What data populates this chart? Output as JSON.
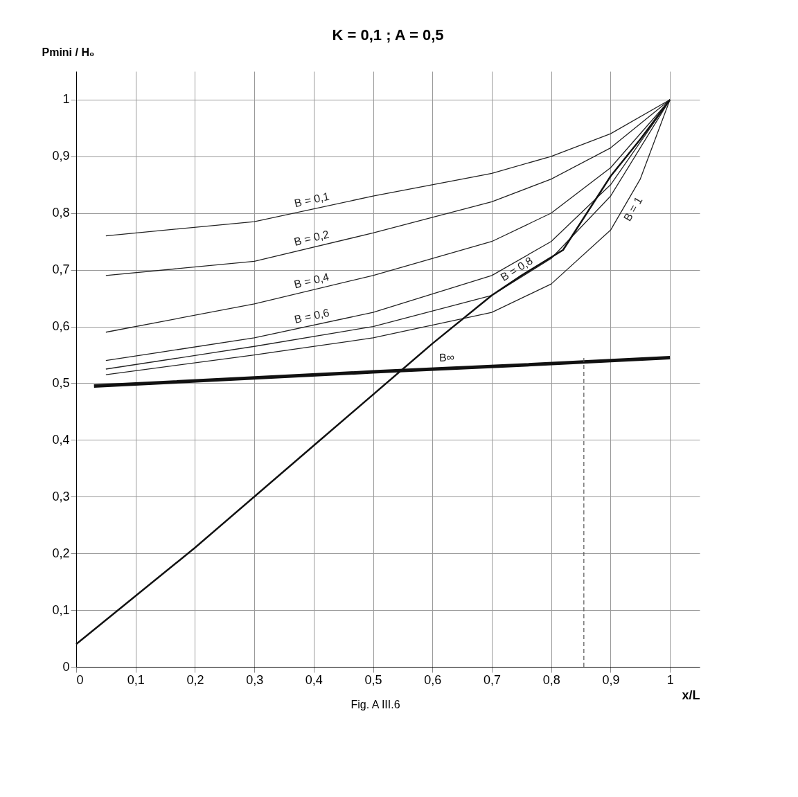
{
  "chart_data": {
    "type": "line",
    "title": "K = 0,1     ;     A = 0,5",
    "xlabel": "x/L",
    "ylabel": "Pmini / H₀",
    "xlim": [
      0,
      1.05
    ],
    "ylim": [
      0,
      1.05
    ],
    "xticks": [
      0,
      {
        "value": 0.1,
        "label": "0,1"
      },
      {
        "value": 0.2,
        "label": "0,2"
      },
      {
        "value": 0.3,
        "label": "0,3"
      },
      {
        "value": 0.4,
        "label": "0,4"
      },
      {
        "value": 0.5,
        "label": "0,5"
      },
      {
        "value": 0.6,
        "label": "0,6"
      },
      {
        "value": 0.7,
        "label": "0,7"
      },
      {
        "value": 0.8,
        "label": "0,8"
      },
      {
        "value": 0.9,
        "label": "0,9"
      },
      1
    ],
    "yticks": [
      0,
      {
        "value": 0.1,
        "label": "0,1"
      },
      {
        "value": 0.2,
        "label": "0,2"
      },
      {
        "value": 0.3,
        "label": "0,3"
      },
      {
        "value": 0.4,
        "label": "0,4"
      },
      {
        "value": 0.5,
        "label": "0,5"
      },
      {
        "value": 0.6,
        "label": "0,6"
      },
      {
        "value": 0.7,
        "label": "0,7"
      },
      {
        "value": 0.8,
        "label": "0,8"
      },
      {
        "value": 0.9,
        "label": "0,9"
      },
      1
    ],
    "grid": true,
    "marker": "none",
    "line_style": "solid",
    "series": [
      {
        "name": "B = 0,1",
        "color": "#222222",
        "x": [
          0.05,
          0.3,
          0.5,
          0.7,
          0.8,
          0.9,
          1
        ],
        "values": [
          0.76,
          0.785,
          0.83,
          0.87,
          0.9,
          0.94,
          1
        ]
      },
      {
        "name": "B = 0,2",
        "color": "#222222",
        "x": [
          0.05,
          0.3,
          0.5,
          0.7,
          0.8,
          0.9,
          1
        ],
        "values": [
          0.69,
          0.715,
          0.765,
          0.82,
          0.86,
          0.915,
          1
        ]
      },
      {
        "name": "B = 0,4",
        "color": "#222222",
        "x": [
          0.05,
          0.3,
          0.5,
          0.7,
          0.8,
          0.9,
          1
        ],
        "values": [
          0.59,
          0.64,
          0.69,
          0.75,
          0.8,
          0.88,
          1
        ]
      },
      {
        "name": "B = 0,6",
        "color": "#222222",
        "x": [
          0.05,
          0.3,
          0.5,
          0.7,
          0.8,
          0.9,
          1
        ],
        "values": [
          0.54,
          0.58,
          0.625,
          0.69,
          0.75,
          0.85,
          1
        ]
      },
      {
        "name": "B = 0,8",
        "color": "#222222",
        "x": [
          0.05,
          0.3,
          0.5,
          0.7,
          0.8,
          0.9,
          1
        ],
        "values": [
          0.525,
          0.565,
          0.6,
          0.655,
          0.72,
          0.83,
          1
        ]
      },
      {
        "name": "B = 1",
        "color": "#222222",
        "x": [
          0.05,
          0.3,
          0.5,
          0.7,
          0.8,
          0.9,
          0.95,
          1
        ],
        "values": [
          0.515,
          0.55,
          0.58,
          0.625,
          0.675,
          0.77,
          0.86,
          1
        ]
      },
      {
        "name": "B∞",
        "color": "#111111",
        "x": [
          0.03,
          0.5,
          0.75,
          1
        ],
        "values": [
          0.495,
          0.52,
          0.532,
          0.545
        ]
      },
      {
        "color": "#111111",
        "x": [
          0,
          0.2,
          0.4,
          0.6,
          0.7,
          0.75,
          0.82,
          0.9,
          0.95,
          1
        ],
        "values": [
          0.04,
          0.21,
          0.39,
          0.57,
          0.655,
          0.69,
          0.735,
          0.865,
          0.93,
          1
        ]
      },
      {
        "color": "#555555",
        "line_style": "dashed",
        "x": [
          0.855,
          0.855
        ],
        "values": [
          0,
          0.545
        ]
      }
    ],
    "annotations": [
      "Fig. A III.6"
    ]
  }
}
